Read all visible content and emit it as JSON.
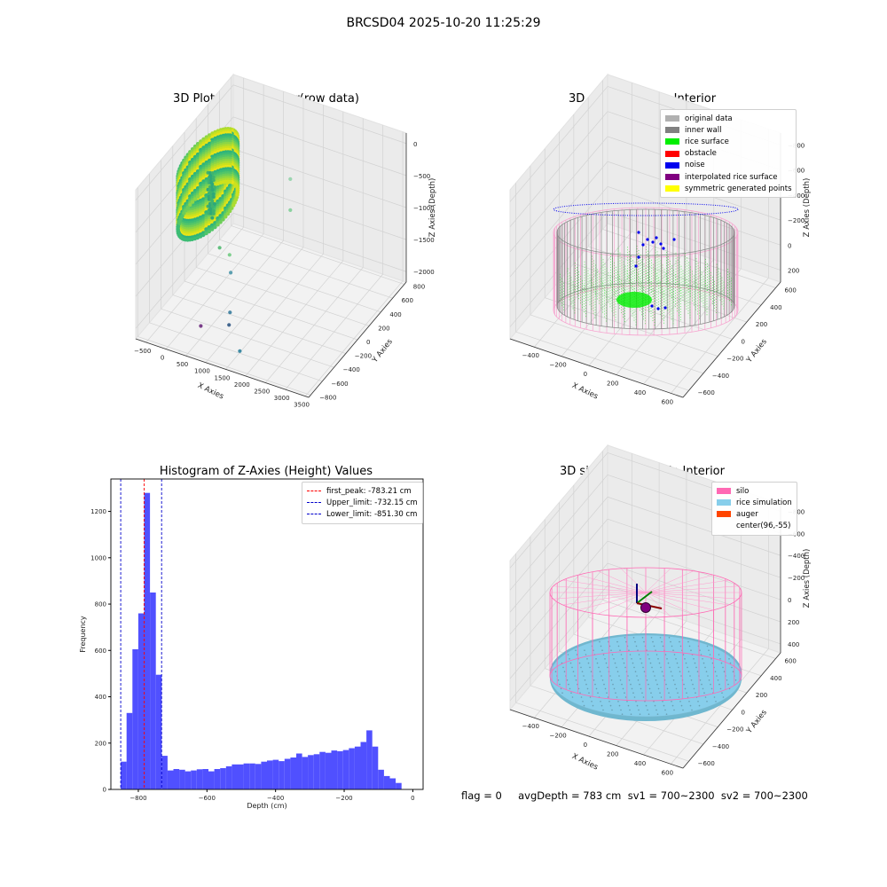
{
  "suptitle": "BRCSD04 2025-10-20 11:25:29",
  "footer": "flag = 0     avgDepth = 783 cm  sv1 = 700~2300  sv2 = 700~2300",
  "chart_data": [
    {
      "type": "scatter",
      "title": "3D Plot of Silo Interior(row data)",
      "xlabel": "X Axies",
      "ylabel": "Y Axies",
      "zlabel": "Z Axies (Depth)",
      "x_ticks": [
        "−500",
        "0",
        "500",
        "1000",
        "1500",
        "2000",
        "2500",
        "3000",
        "3500"
      ],
      "y_ticks": [
        "−800",
        "−600",
        "−400",
        "−200",
        "0",
        "200",
        "400",
        "600",
        "800"
      ],
      "z_ticks": [
        "0",
        "−500",
        "−1000",
        "−1500",
        "−2000"
      ],
      "xlim": [
        -600,
        3500
      ],
      "ylim": [
        -800,
        900
      ],
      "zlim": [
        -2300,
        100
      ],
      "colormap": "viridis",
      "outliers": [
        {
          "x": 300,
          "y": 0,
          "z": -1500,
          "color": "#63c07f"
        },
        {
          "x": 400,
          "y": 100,
          "z": -1700,
          "color": "#7fcf8e"
        },
        {
          "x": 700,
          "y": -100,
          "z": -1700,
          "color": "#5b9fb0"
        },
        {
          "x": 1500,
          "y": 350,
          "z": -500,
          "color": "#9bd5b0"
        },
        {
          "x": 1500,
          "y": 350,
          "z": -1000,
          "color": "#8bd2a0"
        },
        {
          "x": 1000,
          "y": -350,
          "z": -2200,
          "color": "#44678f"
        },
        {
          "x": 1500,
          "y": -700,
          "z": -1500,
          "color": "#4a88a6"
        },
        {
          "x": 1800,
          "y": -750,
          "z": -2000,
          "color": "#3f8ba5"
        },
        {
          "x": 400,
          "y": -400,
          "z": -2300,
          "color": "#7a3f8a"
        }
      ]
    },
    {
      "type": "scatter",
      "title": "3D classify of Silo Interior",
      "xlabel": "X Axies",
      "ylabel": "Y Axies",
      "zlabel": "Z Axies (Depth)",
      "x_ticks": [
        "−400",
        "−200",
        "0",
        "200",
        "400",
        "600"
      ],
      "y_ticks": [
        "−600",
        "−400",
        "−200",
        "0",
        "200",
        "400",
        "600"
      ],
      "z_ticks": [
        "200",
        "0",
        "−200",
        "−400",
        "−600",
        "−800"
      ],
      "xlim": [
        -550,
        750
      ],
      "ylim": [
        -700,
        650
      ],
      "zlim": [
        -950,
        300
      ],
      "legend": [
        {
          "label": "original data",
          "color": "#b0b0b0"
        },
        {
          "label": "inner wall",
          "color": "#808080"
        },
        {
          "label": "rice surface",
          "color": "#00ee00"
        },
        {
          "label": "obstacle",
          "color": "#ff0000"
        },
        {
          "label": "noise",
          "color": "#0000ee"
        },
        {
          "label": "interpolated rice surface",
          "color": "#800080"
        },
        {
          "label": "symmetric generated points",
          "color": "#ffff00"
        }
      ]
    },
    {
      "type": "bar",
      "title": "Histogram of Z-Axies (Height) Values",
      "xlabel": "Depth (cm)",
      "ylabel": "Frequency",
      "xlim": [
        -880,
        30
      ],
      "ylim": [
        0,
        1340
      ],
      "x_ticks": [
        -800,
        -600,
        -400,
        -200,
        0
      ],
      "y_ticks": [
        0,
        200,
        400,
        600,
        800,
        1000,
        1200
      ],
      "bin_start": -851.3,
      "bin_width": 17.05,
      "values": [
        120,
        330,
        605,
        760,
        1280,
        850,
        495,
        145,
        82,
        88,
        85,
        78,
        82,
        87,
        88,
        78,
        88,
        92,
        100,
        108,
        108,
        112,
        112,
        110,
        120,
        125,
        128,
        122,
        132,
        138,
        155,
        140,
        148,
        152,
        162,
        158,
        168,
        165,
        170,
        178,
        185,
        205,
        255,
        185,
        85,
        58,
        48,
        28
      ],
      "bar_color": "#5050ff",
      "vlines": [
        {
          "label": "first_peak: -783.21 cm",
          "x": -783.21,
          "color": "#ff0000"
        },
        {
          "label": "Upper_limit: -732.15 cm",
          "x": -732.15,
          "color": "#0000cc"
        },
        {
          "label": "Lower_limit: -851.30 cm",
          "x": -851.3,
          "color": "#0000cc"
        }
      ]
    },
    {
      "type": "scatter",
      "title": "3D simulation of Silo Interior",
      "xlabel": "X Axies",
      "ylabel": "Y Axies",
      "zlabel": "Z Axies (Depth)",
      "x_ticks": [
        "−400",
        "−200",
        "0",
        "200",
        "400",
        "600"
      ],
      "y_ticks": [
        "−600",
        "−400",
        "−200",
        "0",
        "200",
        "400",
        "600"
      ],
      "z_ticks": [
        "400",
        "200",
        "0",
        "−200",
        "−400",
        "−600",
        "−800"
      ],
      "xlim": [
        -550,
        750
      ],
      "ylim": [
        -700,
        650
      ],
      "zlim": [
        -950,
        500
      ],
      "legend": [
        {
          "label": "silo",
          "color": "#ff69b4"
        },
        {
          "label": "rice simulation",
          "color": "#87ceeb"
        },
        {
          "label": "auger",
          "color": "#ff4500"
        },
        {
          "label": "center(96,-55)",
          "color": ""
        }
      ]
    }
  ]
}
